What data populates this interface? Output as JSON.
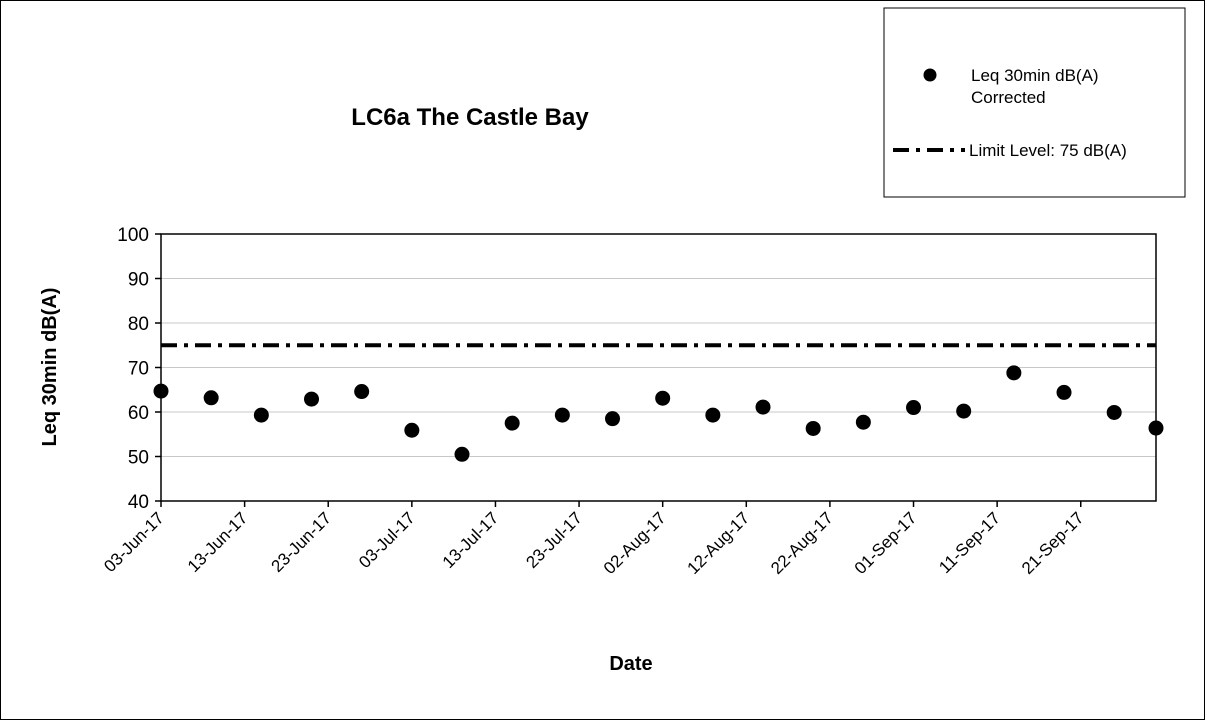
{
  "chart_data": {
    "type": "scatter",
    "title": "LC6a The Castle Bay",
    "xlabel": "Date",
    "ylabel": "Leq 30min dB(A)",
    "ylim": [
      40,
      100
    ],
    "y_ticks": [
      "40",
      "50",
      "60",
      "70",
      "80",
      "90",
      "100"
    ],
    "y_tick_values": [
      40,
      50,
      60,
      70,
      80,
      90,
      100
    ],
    "x_range": [
      "2017-06-03",
      "2017-09-30"
    ],
    "x_ticks": [
      "03-Jun-17",
      "13-Jun-17",
      "23-Jun-17",
      "03-Jul-17",
      "13-Jul-17",
      "23-Jul-17",
      "02-Aug-17",
      "12-Aug-17",
      "22-Aug-17",
      "01-Sep-17",
      "11-Sep-17",
      "21-Sep-17"
    ],
    "x_tick_dates": [
      "2017-06-03",
      "2017-06-13",
      "2017-06-23",
      "2017-07-03",
      "2017-07-13",
      "2017-07-23",
      "2017-08-02",
      "2017-08-12",
      "2017-08-22",
      "2017-09-01",
      "2017-09-11",
      "2017-09-21"
    ],
    "grid": {
      "horizontal": true,
      "vertical": false
    },
    "legend_position": "top-right",
    "series": [
      {
        "name": "Leq 30min dB(A) Corrected",
        "legend_lines": [
          "Leq 30min dB(A)",
          "Corrected"
        ],
        "marker": "circle",
        "color": "#000000",
        "points": [
          {
            "x": "2017-06-03",
            "y": 64.7
          },
          {
            "x": "2017-06-09",
            "y": 63.2
          },
          {
            "x": "2017-06-15",
            "y": 59.3
          },
          {
            "x": "2017-06-21",
            "y": 62.9
          },
          {
            "x": "2017-06-27",
            "y": 64.6
          },
          {
            "x": "2017-07-03",
            "y": 55.9
          },
          {
            "x": "2017-07-09",
            "y": 50.5
          },
          {
            "x": "2017-07-15",
            "y": 57.5
          },
          {
            "x": "2017-07-21",
            "y": 59.3
          },
          {
            "x": "2017-07-27",
            "y": 58.5
          },
          {
            "x": "2017-08-02",
            "y": 63.1
          },
          {
            "x": "2017-08-08",
            "y": 59.3
          },
          {
            "x": "2017-08-14",
            "y": 61.1
          },
          {
            "x": "2017-08-20",
            "y": 56.3
          },
          {
            "x": "2017-08-26",
            "y": 57.7
          },
          {
            "x": "2017-09-01",
            "y": 61.0
          },
          {
            "x": "2017-09-07",
            "y": 60.2
          },
          {
            "x": "2017-09-13",
            "y": 68.8
          },
          {
            "x": "2017-09-19",
            "y": 64.4
          },
          {
            "x": "2017-09-25",
            "y": 59.9
          },
          {
            "x": "2017-09-30",
            "y": 56.4
          }
        ]
      },
      {
        "name": "Limit Level: 75 dB(A)",
        "type": "line",
        "style": "dash-dot",
        "color": "#000000",
        "y": 75
      }
    ]
  }
}
